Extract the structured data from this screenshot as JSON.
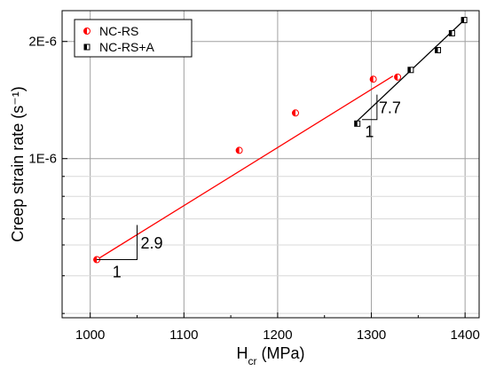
{
  "chart_data": {
    "type": "scatter",
    "xlabel_main": "H",
    "xlabel_sub": "cr",
    "xlabel_rest": " (MPa)",
    "ylabel": "Creep strain rate (s⁻¹)",
    "xlim": [
      970,
      1415
    ],
    "ylim_log": [
      3.9e-07,
      2.4e-06
    ],
    "y_scale": "log",
    "x_ticks": [
      1000,
      1100,
      1200,
      1300,
      1400
    ],
    "x_tick_labels": [
      "1000",
      "1100",
      "1200",
      "1300",
      "1400"
    ],
    "y_ticks": [
      1e-06,
      2e-06
    ],
    "y_tick_labels": [
      "1E-6",
      "2E-6"
    ],
    "grid": true,
    "legend_position": "top-left",
    "series": [
      {
        "name": "NC-RS",
        "color": "#ff0000",
        "marker": "half-filled-circle",
        "x": [
          1007,
          1159,
          1219,
          1302,
          1328
        ],
        "y": [
          5.5e-07,
          1.05e-06,
          1.31e-06,
          1.6e-06,
          1.62e-06
        ],
        "fit": {
          "x": [
            1007,
            1323
          ],
          "y": [
            5.5e-07,
            1.63e-06
          ]
        }
      },
      {
        "name": "NC-RS+A",
        "color": "#000000",
        "marker": "half-filled-square",
        "x": [
          1285,
          1342,
          1371,
          1386,
          1399
        ],
        "y": [
          1.23e-06,
          1.69e-06,
          1.9e-06,
          2.1e-06,
          2.27e-06
        ],
        "fit": {
          "x": [
            1285,
            1399
          ],
          "y": [
            1.25e-06,
            2.27e-06
          ]
        }
      }
    ],
    "annotations": [
      {
        "slope_label": "2.9",
        "run_label": "1"
      },
      {
        "slope_label": "7.7",
        "run_label": "1"
      }
    ]
  }
}
